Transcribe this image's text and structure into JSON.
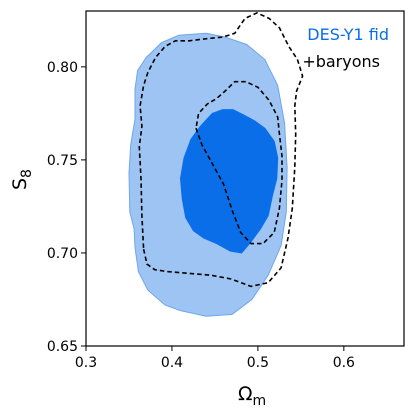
{
  "chart_data": {
    "type": "contour",
    "xlabel": {
      "main": "Ω",
      "sub": "m"
    },
    "ylabel": {
      "main": "S",
      "sub": "8"
    },
    "xlim": [
      0.3,
      0.67
    ],
    "ylim": [
      0.65,
      0.83
    ],
    "xticks": [
      0.3,
      0.4,
      0.5,
      0.6
    ],
    "xtick_labels": [
      "0.3",
      "0.4",
      "0.5",
      "0.6"
    ],
    "yticks": [
      0.65,
      0.7,
      0.75,
      0.8
    ],
    "ytick_labels": [
      "0.65",
      "0.70",
      "0.75",
      "0.80"
    ],
    "grid": false,
    "legend_position": "top-right",
    "colors": {
      "outer_fill": "#9dc4f2",
      "outer_edge": "#6fa6ea",
      "inner_fill": "#0a6ee8",
      "dashed": "#000000",
      "label_fid": "#0a6ee8",
      "label_baryons": "#000000"
    },
    "series": [
      {
        "name": "DES-Y1 fid",
        "style": "filled",
        "contours": [
          {
            "level": "95%",
            "points": [
              [
                0.357,
                0.703
              ],
              [
                0.361,
                0.69
              ],
              [
                0.372,
                0.68
              ],
              [
                0.392,
                0.672
              ],
              [
                0.41,
                0.669
              ],
              [
                0.44,
                0.666
              ],
              [
                0.47,
                0.667
              ],
              [
                0.493,
                0.675
              ],
              [
                0.512,
                0.688
              ],
              [
                0.527,
                0.704
              ],
              [
                0.533,
                0.722
              ],
              [
                0.534,
                0.746
              ],
              [
                0.531,
                0.77
              ],
              [
                0.523,
                0.79
              ],
              [
                0.508,
                0.804
              ],
              [
                0.487,
                0.812
              ],
              [
                0.462,
                0.816
              ],
              [
                0.44,
                0.818
              ],
              [
                0.408,
                0.817
              ],
              [
                0.388,
                0.813
              ],
              [
                0.37,
                0.805
              ],
              [
                0.36,
                0.798
              ],
              [
                0.357,
                0.788
              ],
              [
                0.357,
                0.772
              ],
              [
                0.352,
                0.758
              ],
              [
                0.35,
                0.743
              ],
              [
                0.351,
                0.722
              ],
              [
                0.356,
                0.713
              ]
            ]
          },
          {
            "level": "68%",
            "points": [
              [
                0.41,
                0.74
              ],
              [
                0.412,
                0.729
              ],
              [
                0.416,
                0.719
              ],
              [
                0.425,
                0.712
              ],
              [
                0.437,
                0.708
              ],
              [
                0.452,
                0.705
              ],
              [
                0.468,
                0.701
              ],
              [
                0.481,
                0.7
              ],
              [
                0.492,
                0.706
              ],
              [
                0.503,
                0.713
              ],
              [
                0.512,
                0.72
              ],
              [
                0.517,
                0.731
              ],
              [
                0.522,
                0.74
              ],
              [
                0.523,
                0.751
              ],
              [
                0.519,
                0.76
              ],
              [
                0.508,
                0.767
              ],
              [
                0.496,
                0.771
              ],
              [
                0.484,
                0.774
              ],
              [
                0.471,
                0.777
              ],
              [
                0.459,
                0.777
              ],
              [
                0.447,
                0.775
              ],
              [
                0.433,
                0.768
              ],
              [
                0.422,
                0.761
              ],
              [
                0.414,
                0.751
              ]
            ]
          }
        ]
      },
      {
        "name": "+baryons",
        "style": "dashed",
        "contours": [
          {
            "level": "95%",
            "points": [
              [
                0.367,
                0.702
              ],
              [
                0.371,
                0.694
              ],
              [
                0.38,
                0.691
              ],
              [
                0.395,
                0.69
              ],
              [
                0.42,
                0.689
              ],
              [
                0.446,
                0.688
              ],
              [
                0.469,
                0.686
              ],
              [
                0.492,
                0.682
              ],
              [
                0.512,
                0.684
              ],
              [
                0.527,
                0.692
              ],
              [
                0.535,
                0.708
              ],
              [
                0.54,
                0.724
              ],
              [
                0.543,
                0.746
              ],
              [
                0.544,
                0.764
              ],
              [
                0.543,
                0.779
              ],
              [
                0.545,
                0.787
              ],
              [
                0.552,
                0.795
              ],
              [
                0.546,
                0.804
              ],
              [
                0.536,
                0.811
              ],
              [
                0.525,
                0.821
              ],
              [
                0.513,
                0.826
              ],
              [
                0.499,
                0.829
              ],
              [
                0.485,
                0.826
              ],
              [
                0.473,
                0.818
              ],
              [
                0.459,
                0.816
              ],
              [
                0.438,
                0.815
              ],
              [
                0.42,
                0.814
              ],
              [
                0.404,
                0.814
              ],
              [
                0.392,
                0.811
              ],
              [
                0.381,
                0.805
              ],
              [
                0.372,
                0.797
              ],
              [
                0.367,
                0.79
              ],
              [
                0.363,
                0.779
              ],
              [
                0.365,
                0.768
              ],
              [
                0.362,
                0.757
              ],
              [
                0.364,
                0.74
              ],
              [
                0.365,
                0.72
              ]
            ]
          },
          {
            "level": "68%",
            "points": [
              [
                0.428,
                0.767
              ],
              [
                0.435,
                0.758
              ],
              [
                0.447,
                0.748
              ],
              [
                0.46,
                0.737
              ],
              [
                0.47,
                0.723
              ],
              [
                0.48,
                0.711
              ],
              [
                0.492,
                0.705
              ],
              [
                0.506,
                0.705
              ],
              [
                0.519,
                0.711
              ],
              [
                0.525,
                0.724
              ],
              [
                0.528,
                0.739
              ],
              [
                0.528,
                0.752
              ],
              [
                0.525,
                0.764
              ],
              [
                0.523,
                0.773
              ],
              [
                0.513,
                0.782
              ],
              [
                0.5,
                0.789
              ],
              [
                0.486,
                0.792
              ],
              [
                0.473,
                0.792
              ],
              [
                0.462,
                0.787
              ],
              [
                0.452,
                0.783
              ],
              [
                0.441,
                0.78
              ],
              [
                0.431,
                0.775
              ]
            ]
          }
        ]
      }
    ]
  }
}
